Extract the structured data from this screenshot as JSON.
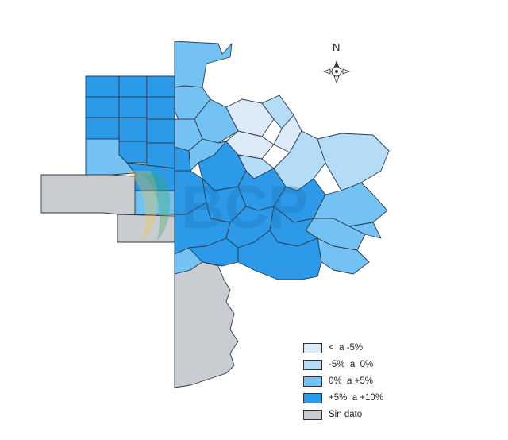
{
  "north_label": "N",
  "watermark_text": "BCP",
  "colors": {
    "neg_strong": "#dcebf7",
    "neg_mild": "#b5dcf7",
    "pos_mild": "#73c2f3",
    "pos_strong": "#2c9ae8",
    "no_data": "#c9ccd0"
  },
  "legend": [
    {
      "label": "<  a -5%",
      "color": "#dcebf7"
    },
    {
      "label": "-5%  a  0%",
      "color": "#b5dcf7"
    },
    {
      "label": "0%  a +5%",
      "color": "#73c2f3"
    },
    {
      "label": "+5%  a +10%",
      "color": "#2c9ae8"
    },
    {
      "label": "Sin dato",
      "color": "#c9ccd0"
    }
  ]
}
